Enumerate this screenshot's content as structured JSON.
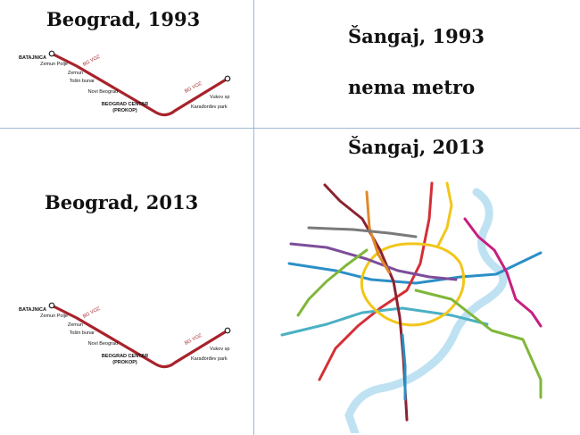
{
  "titles": {
    "beograd_1993": "Beograd, 1993",
    "sangaj_1993": "Šangaj, 1993",
    "nema_metro": "nema metro",
    "beograd_2013": "Beograd, 2013",
    "sangaj_2013": "Šangaj, 2013"
  },
  "belgrade_map": {
    "line_label": "BG VOZ",
    "line_color": "#a8232b",
    "stations": {
      "batajnica": "BATAJNICA",
      "zemun_polje": "Zemun Polje",
      "zemun": "Zemun",
      "tosin_bunar": "Tošin bunar",
      "novi_beograd": "Novi Beograd",
      "centar_1": "BEOGRAD CENTAR",
      "centar_2": "(PROKOP)",
      "vukov": "Vukov sp",
      "karadjordjev": "Karađorđev park"
    }
  },
  "shanghai_map": {
    "river_color": "#bfe2f3",
    "line_colors": [
      "#d42f36",
      "#7fb73a",
      "#f2c61a",
      "#7d4d9a",
      "#c61f7f",
      "#2b8fc7",
      "#8b2331",
      "#e08a2b",
      "#4bb0c4",
      "#7a7a7a"
    ]
  }
}
